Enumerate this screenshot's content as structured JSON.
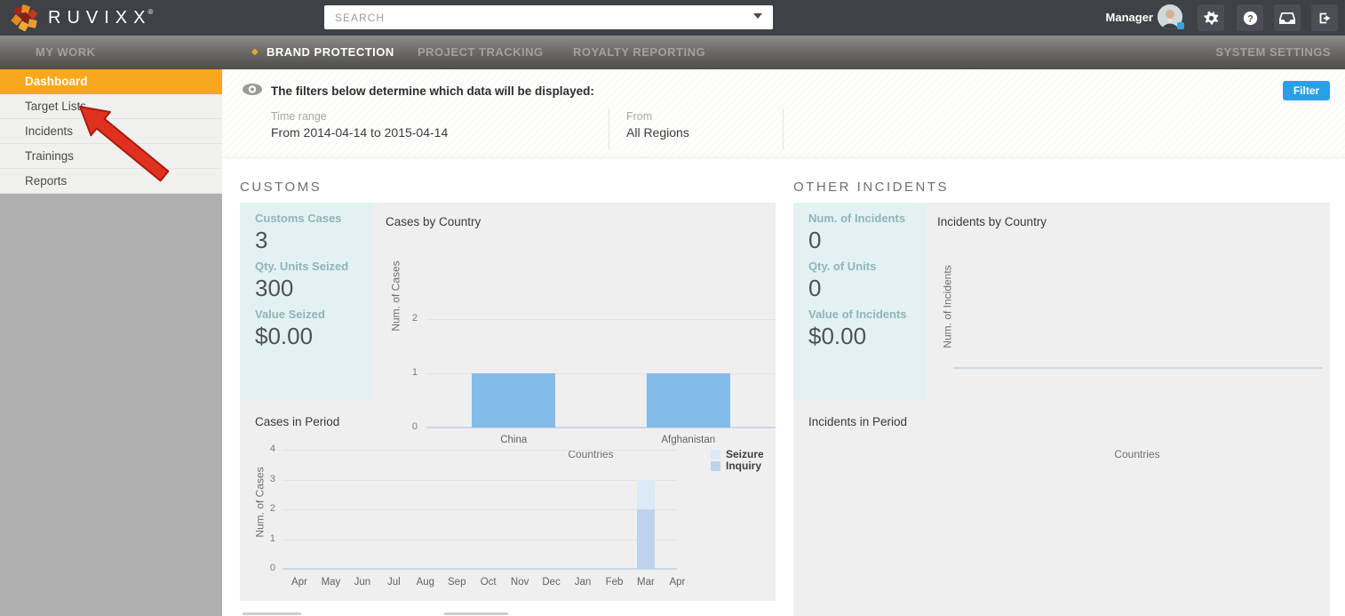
{
  "colors": {
    "topbar_bg": "#3e4146",
    "accent_orange": "#f8a81d",
    "filter_button_blue": "#2b9fe6",
    "bar_blue": "#85bbe8",
    "seizure_blue": "#dce9f6",
    "inquiry_blue": "#bdd3eb",
    "stat_panel_teal": "#e3f1f2",
    "card_gray": "#efefef"
  },
  "topbar": {
    "brand": "RUVIXX",
    "brand_reg": "®",
    "search": {
      "placeholder": "SEARCH"
    },
    "user": {
      "label": "Manager"
    },
    "icons": [
      "gear",
      "help",
      "inbox",
      "sign-out"
    ]
  },
  "nav": {
    "items": [
      {
        "label": "MY WORK",
        "active": false
      },
      {
        "label": "BRAND PROTECTION",
        "active": true
      },
      {
        "label": "PROJECT TRACKING",
        "active": false
      },
      {
        "label": "ROYALTY REPORTING",
        "active": false
      }
    ],
    "right_item": {
      "label": "SYSTEM SETTINGS"
    }
  },
  "sidebar": {
    "items": [
      {
        "label": "Dashboard",
        "active": true
      },
      {
        "label": "Target Lists",
        "active": false
      },
      {
        "label": "Incidents",
        "active": false
      },
      {
        "label": "Trainings",
        "active": false
      },
      {
        "label": "Reports",
        "active": false
      }
    ],
    "annotation": "red arrow pointing at Target Lists"
  },
  "filter_bar": {
    "heading": "The filters below determine which data will be displayed:",
    "fields": [
      {
        "label": "Time range",
        "value": "From 2014-04-14 to 2015-04-14"
      },
      {
        "label": "From",
        "value": "All Regions"
      }
    ],
    "button_label": "Filter"
  },
  "customs": {
    "section_title": "CUSTOMS",
    "stats": [
      {
        "label": "Customs Cases",
        "value": "3"
      },
      {
        "label": "Qty. Units Seized",
        "value": "300"
      },
      {
        "label": "Value Seized",
        "value": "$0.00"
      }
    ]
  },
  "other_incidents": {
    "section_title": "OTHER INCIDENTS",
    "stats": [
      {
        "label": "Num. of Incidents",
        "value": "0"
      },
      {
        "label": "Qty. of Units",
        "value": "0"
      },
      {
        "label": "Value of Incidents",
        "value": "$0.00"
      }
    ],
    "in_period_title": "Incidents in Period"
  },
  "chart_data": [
    {
      "id": "cases_by_country",
      "type": "bar",
      "title": "Cases by Country",
      "categories": [
        "China",
        "Afghanistan"
      ],
      "values": [
        1,
        1
      ],
      "xlabel": "Countries",
      "ylabel": "Num. of Cases",
      "yticks": [
        0,
        1,
        2
      ],
      "ylim": [
        0,
        2
      ],
      "bar_color": "#85bbe8",
      "grid": true
    },
    {
      "id": "cases_in_period",
      "type": "bar",
      "stacked": true,
      "title": "Cases in Period",
      "categories": [
        "Apr",
        "May",
        "Jun",
        "Jul",
        "Aug",
        "Sep",
        "Oct",
        "Nov",
        "Dec",
        "Jan",
        "Feb",
        "Mar",
        "Apr"
      ],
      "series": [
        {
          "name": "Inquiry",
          "color": "#bdd3eb",
          "values": [
            0,
            0,
            0,
            0,
            0,
            0,
            0,
            0,
            0,
            0,
            0,
            2,
            0
          ]
        },
        {
          "name": "Seizure",
          "color": "#dce9f6",
          "values": [
            0,
            0,
            0,
            0,
            0,
            0,
            0,
            0,
            0,
            0,
            0,
            1,
            0
          ]
        }
      ],
      "ylabel": "Num. of Cases",
      "yticks": [
        0,
        1,
        2,
        3,
        4
      ],
      "ylim": [
        0,
        4
      ],
      "legend": [
        "Seizure",
        "Inquiry"
      ],
      "legend_position": "right",
      "grid": true
    },
    {
      "id": "incidents_by_country",
      "type": "bar",
      "title": "Incidents by Country",
      "categories": [],
      "values": [],
      "xlabel": "Countries",
      "ylabel": "Num. of Incidents",
      "ylim": [
        0,
        1
      ],
      "empty": true,
      "grid": false
    }
  ]
}
